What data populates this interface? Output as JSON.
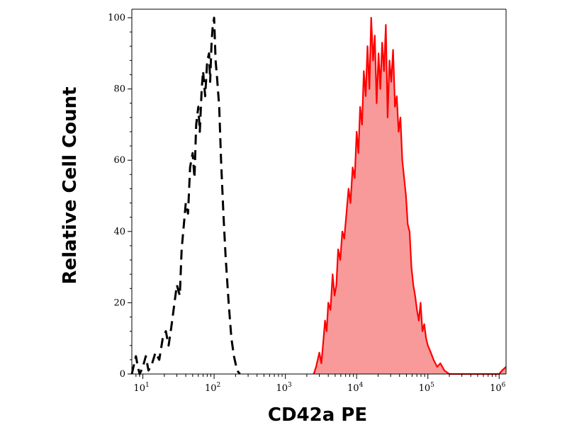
{
  "chart_data": {
    "type": "area",
    "title": "",
    "xlabel": "CD42a PE",
    "ylabel": "Relative Cell Count",
    "x_scale": "log10",
    "xlim": [
      7,
      1250000
    ],
    "ylim": [
      0,
      100
    ],
    "grid": false,
    "x_ticks": [
      {
        "base": "10",
        "exp": "1"
      },
      {
        "base": "10",
        "exp": "2"
      },
      {
        "base": "10",
        "exp": "3"
      },
      {
        "base": "10",
        "exp": "4"
      },
      {
        "base": "10",
        "exp": "5"
      },
      {
        "base": "10",
        "exp": "6"
      }
    ],
    "y_ticks": [
      "0",
      "20",
      "40",
      "60",
      "80",
      "100"
    ],
    "series": [
      {
        "style": "dashed",
        "color": "#000000",
        "fill": "none",
        "x": [
          7,
          8,
          8.5,
          9,
          10,
          11,
          12,
          13.5,
          15,
          17,
          19,
          21,
          23,
          25,
          27,
          30,
          33,
          35,
          38,
          40,
          43,
          46,
          50,
          53,
          56,
          60,
          63,
          67,
          70,
          75,
          80,
          85,
          88,
          92,
          95,
          100,
          105,
          110,
          118,
          125,
          135,
          145,
          160,
          175,
          190,
          210,
          230
        ],
        "y": [
          0,
          5,
          2,
          0,
          2,
          5,
          1,
          3,
          6,
          4,
          10,
          12,
          8,
          13,
          18,
          25,
          22,
          35,
          43,
          48,
          45,
          58,
          62,
          55,
          70,
          75,
          68,
          80,
          85,
          78,
          88,
          90,
          82,
          93,
          97,
          100,
          88,
          83,
          75,
          60,
          45,
          33,
          20,
          10,
          5,
          1,
          0
        ]
      },
      {
        "style": "solid",
        "color": "#ff0000",
        "fill": "#f89a9a",
        "x": [
          2500,
          2700,
          3000,
          3200,
          3400,
          3600,
          3800,
          4000,
          4300,
          4600,
          4900,
          5200,
          5500,
          5900,
          6300,
          6700,
          7200,
          7700,
          8200,
          8800,
          9400,
          10000,
          10600,
          11200,
          11900,
          12600,
          13400,
          14200,
          15100,
          16000,
          17000,
          18000,
          19100,
          20300,
          21500,
          22800,
          24200,
          25700,
          27200,
          28900,
          30600,
          32500,
          34500,
          36600,
          38800,
          41200,
          43700,
          46400,
          49200,
          52200,
          55400,
          58800,
          62400,
          66200,
          70200,
          74500,
          79000,
          83800,
          88900,
          94300,
          100000,
          110000,
          120000,
          135000,
          150000,
          170000,
          200000,
          250000,
          320000,
          400000,
          500000,
          600000,
          700000,
          800000,
          900000,
          1000000,
          1100000,
          1250000
        ],
        "y": [
          0,
          2,
          6,
          3,
          9,
          15,
          12,
          20,
          18,
          28,
          22,
          25,
          35,
          32,
          40,
          38,
          45,
          52,
          48,
          58,
          55,
          68,
          62,
          75,
          70,
          85,
          78,
          92,
          80,
          100,
          88,
          95,
          76,
          90,
          80,
          93,
          85,
          98,
          72,
          88,
          82,
          91,
          75,
          78,
          68,
          72,
          60,
          55,
          50,
          42,
          40,
          30,
          25,
          22,
          18,
          15,
          20,
          12,
          14,
          10,
          8,
          6,
          4,
          2,
          3,
          1,
          0,
          0,
          0,
          0,
          0,
          0,
          0,
          0,
          0,
          0,
          1,
          2
        ]
      }
    ]
  }
}
